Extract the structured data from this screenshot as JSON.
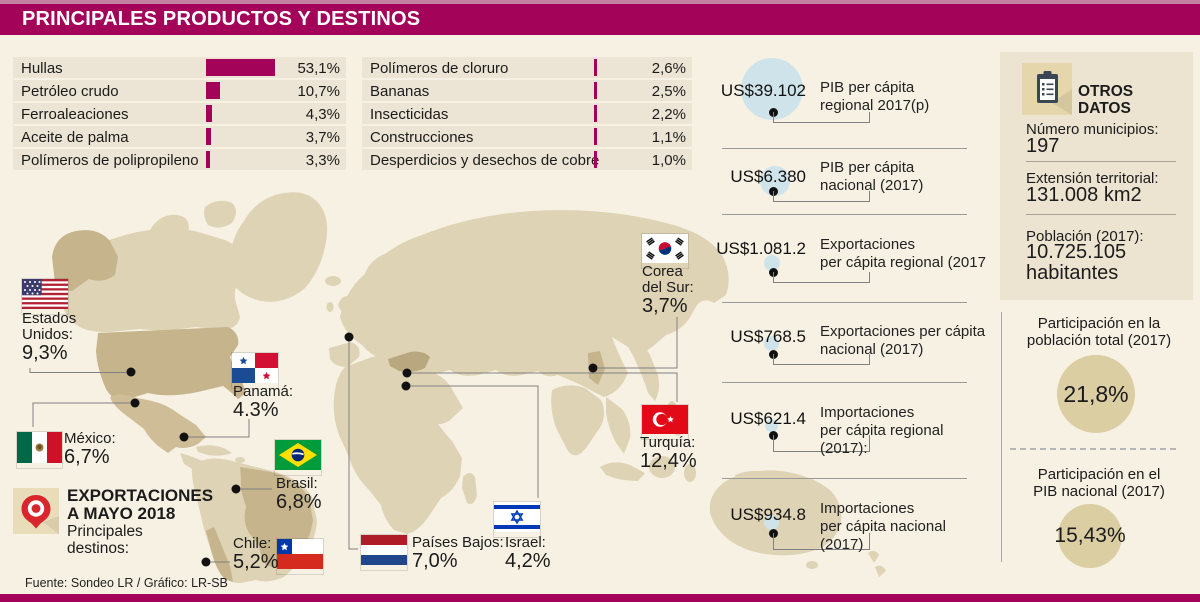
{
  "header": {
    "title": "PRINCIPALES PRODUCTOS Y DESTINOS"
  },
  "products": {
    "col1": [
      {
        "label": "Hullas",
        "value": "53,1%",
        "pct": 53.1
      },
      {
        "label": "Petróleo crudo",
        "value": "10,7%",
        "pct": 10.7
      },
      {
        "label": "Ferroaleaciones",
        "value": "4,3%",
        "pct": 4.3
      },
      {
        "label": "Aceite de palma",
        "value": "3,7%",
        "pct": 3.7
      },
      {
        "label": "Polímeros de polipropileno",
        "value": "3,3%",
        "pct": 3.3
      }
    ],
    "col2": [
      {
        "label": "Polímeros de cloruro",
        "value": "2,6%",
        "pct": 2.6
      },
      {
        "label": "Bananas",
        "value": "2,5%",
        "pct": 2.5
      },
      {
        "label": "Insecticidas",
        "value": "2,2%",
        "pct": 2.2
      },
      {
        "label": "Construcciones",
        "value": "1,1%",
        "pct": 1.1
      },
      {
        "label": "Desperdicios y desechos de cobre",
        "value": "1,0%",
        "pct": 1.0
      }
    ]
  },
  "export_box": {
    "title": "EXPORTACIONES\nA MAYO 2018",
    "subtitle": "Principales\ndestinos:"
  },
  "destinations": [
    {
      "name": "Estados\nUnidos:",
      "value": "9,3%"
    },
    {
      "name": "México:",
      "value": "6,7%"
    },
    {
      "name": "Panamá:",
      "value": "4.3%"
    },
    {
      "name": "Brasil:",
      "value": "6,8%"
    },
    {
      "name": "Chile:",
      "value": "5,2%"
    },
    {
      "name": "Países Bajos:",
      "value": "7,0%"
    },
    {
      "name": "Israel:",
      "value": "4,2%"
    },
    {
      "name": "Turquía:",
      "value": "12,4%"
    },
    {
      "name": "Corea\ndel Sur:",
      "value": "3,7%"
    }
  ],
  "indicators": [
    {
      "value": "US$39.102",
      "label": "PIB per cápita\nregional 2017(p)"
    },
    {
      "value": "US$6.380",
      "label": "PIB per cápita\nnacional (2017)"
    },
    {
      "value": "US$1.081.2",
      "label": "Exportaciones\nper cápita regional (2017"
    },
    {
      "value": "US$768.5",
      "label": "Exportaciones per cápita\nnacional (2017)"
    },
    {
      "value": "US$621.4",
      "label": "Importaciones\nper cápita regional\n(2017):"
    },
    {
      "value": "US$934.8",
      "label": "Importaciones\nper cápita nacional\n(2017)"
    }
  ],
  "otros": {
    "title": "OTROS\nDATOS",
    "items": [
      {
        "label": "Número municipios:",
        "value": "197"
      },
      {
        "label": "Extensión territorial:",
        "value": "131.008 km2"
      },
      {
        "label": "Población (2017):",
        "value": "10.725.105\nhabitantes"
      }
    ]
  },
  "participation": [
    {
      "label": "Participación en la\npoblación total (2017)",
      "value": "21,8%"
    },
    {
      "label": "Participación en el\nPIB nacional (2017)",
      "value": "15,43%"
    }
  ],
  "footer": {
    "source": "Fuente: Sondeo LR / Gráfico: LR-SB"
  },
  "colors": {
    "accent": "#a30459",
    "land": "#dfd3b5",
    "land_highlight": "#c6b48c",
    "circle_blue": "#cfe3ea",
    "circle_tan": "#dbcea3"
  },
  "chart_data": [
    {
      "type": "bar",
      "title": "Principales productos",
      "categories": [
        "Hullas",
        "Petróleo crudo",
        "Ferroaleaciones",
        "Aceite de palma",
        "Polímeros de polipropileno",
        "Polímeros de cloruro",
        "Bananas",
        "Insecticidas",
        "Construcciones",
        "Desperdicios y desechos de cobre"
      ],
      "values": [
        53.1,
        10.7,
        4.3,
        3.7,
        3.3,
        2.6,
        2.5,
        2.2,
        1.1,
        1.0
      ],
      "unit": "%",
      "xlabel": "",
      "ylabel": ""
    },
    {
      "type": "table",
      "title": "Exportaciones a mayo 2018 - Principales destinos",
      "categories": [
        "Estados Unidos",
        "México",
        "Panamá",
        "Brasil",
        "Chile",
        "Países Bajos",
        "Israel",
        "Turquía",
        "Corea del Sur"
      ],
      "values": [
        9.3,
        6.7,
        4.3,
        6.8,
        5.2,
        7.0,
        4.2,
        12.4,
        3.7
      ],
      "unit": "%"
    },
    {
      "type": "table",
      "title": "Indicadores per cápita",
      "categories": [
        "PIB per cápita regional 2017(p)",
        "PIB per cápita nacional (2017)",
        "Exportaciones per cápita regional (2017",
        "Exportaciones per cápita nacional (2017)",
        "Importaciones per cápita regional (2017)",
        "Importaciones per cápita nacional (2017)"
      ],
      "values": [
        "US$39.102",
        "US$6.380",
        "US$1.081.2",
        "US$768.5",
        "US$621.4",
        "US$934.8"
      ]
    }
  ]
}
